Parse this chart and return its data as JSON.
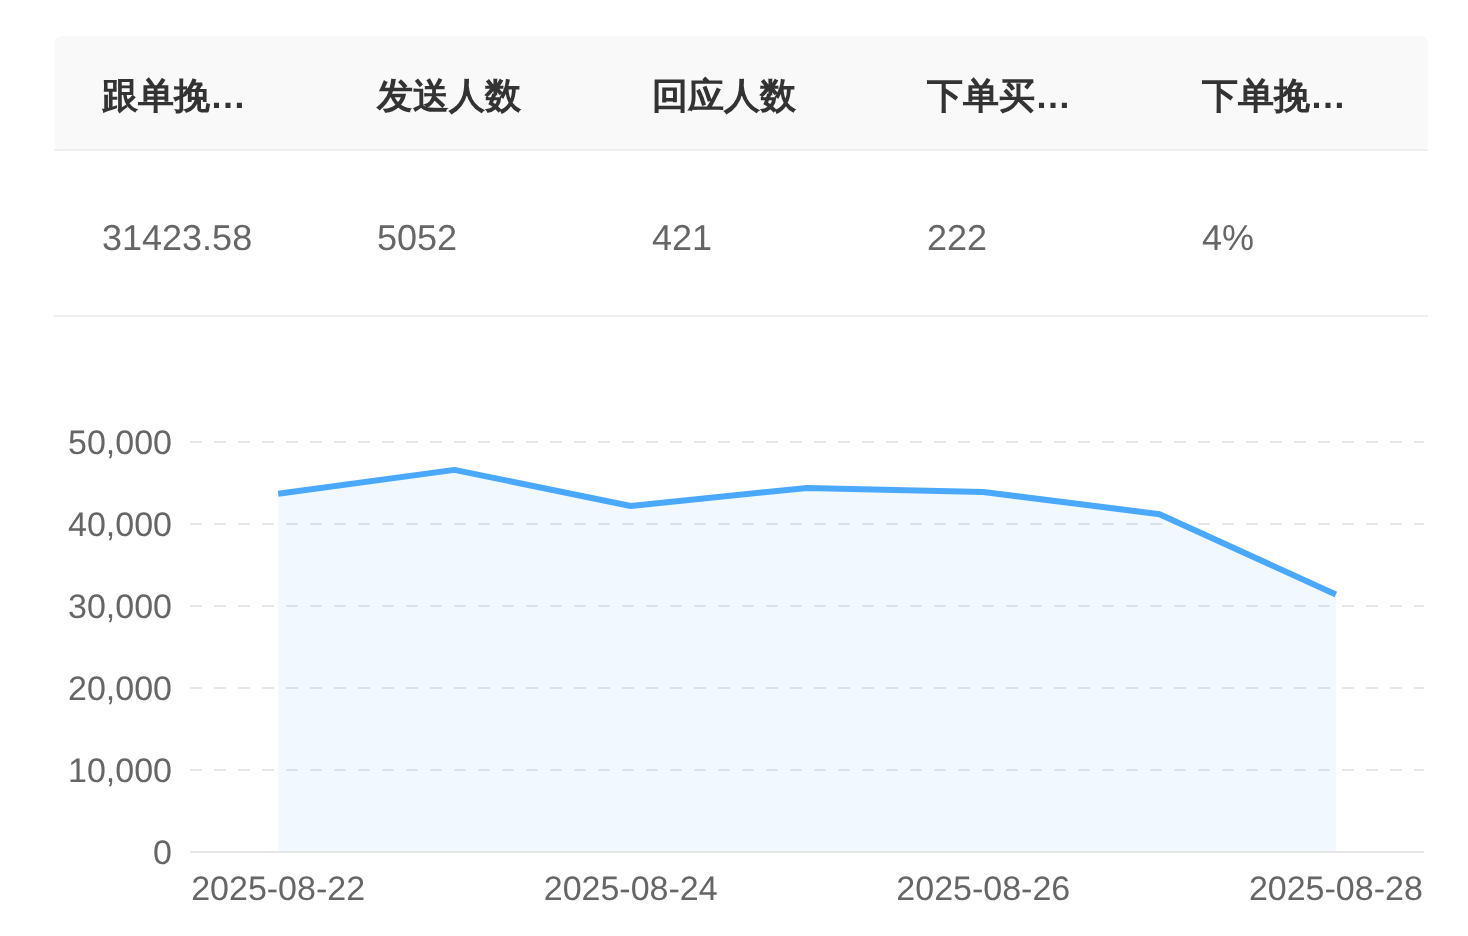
{
  "chart_data": [
    {
      "type": "other",
      "categories": [
        "跟单挽…",
        "发送人数",
        "回应人数",
        "下单买…",
        "下单挽…"
      ],
      "value_labels": [
        "31423.58",
        "5052",
        "421",
        "222",
        "4%"
      ]
    },
    {
      "type": "area",
      "categories": [
        "2025-08-22",
        null,
        "2025-08-24",
        null,
        "2025-08-26",
        null,
        "2025-08-28"
      ],
      "series": [
        {
          "color": "#4aa8ff",
          "values": [
            43700,
            46600,
            42200,
            44400,
            43900,
            41200,
            31400
          ]
        }
      ],
      "ylim": [
        0,
        50000
      ],
      "yticks": [
        {
          "value": 0,
          "label": "0"
        },
        {
          "value": 10000,
          "label": "10,000"
        },
        {
          "value": 20000,
          "label": "20,000"
        },
        {
          "value": 30000,
          "label": "30,000"
        },
        {
          "value": 40000,
          "label": "40,000"
        },
        {
          "value": 50000,
          "label": "50,000"
        }
      ],
      "grid": "y"
    }
  ]
}
